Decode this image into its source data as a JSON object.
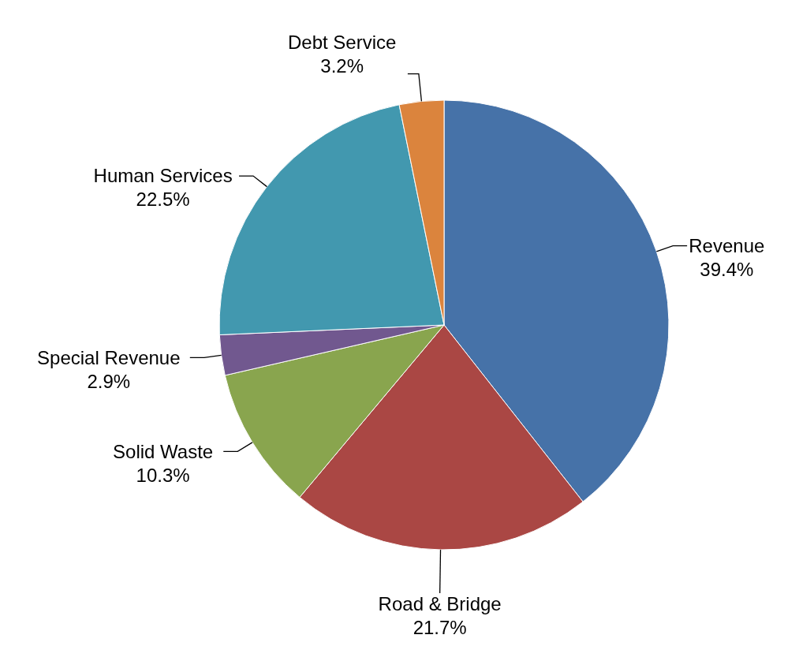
{
  "chart_data": {
    "type": "pie",
    "categories": [
      "Revenue",
      "Road & Bridge",
      "Solid Waste",
      "Special Revenue",
      "Human Services",
      "Debt Service"
    ],
    "values": [
      39.4,
      21.7,
      10.3,
      2.9,
      22.5,
      3.2
    ],
    "value_labels": [
      "39.4%",
      "21.7%",
      "10.3%",
      "2.9%",
      "22.5%",
      "3.2%"
    ],
    "colors": [
      "#4672a8",
      "#aa4744",
      "#89a54e",
      "#71588f",
      "#4298af",
      "#db843d"
    ]
  }
}
